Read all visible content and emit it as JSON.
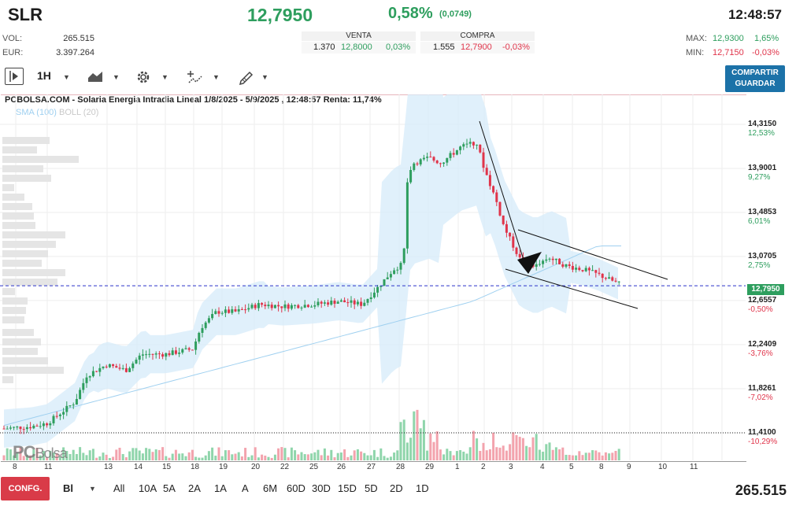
{
  "header": {
    "ticker": "SLR",
    "price": "12,7950",
    "change_pct": "0,58%",
    "change_abs": "(0,0749)",
    "time": "12:48:57",
    "vol_label": "VOL:",
    "vol_value": "265.515",
    "eur_label": "EUR:",
    "eur_value": "3.397.264",
    "max_label": "MAX:",
    "max_value": "12,9300",
    "max_pct": "1,65%",
    "min_label": "MIN:",
    "min_value": "12,7150",
    "min_pct": "-0,03%"
  },
  "order_book": {
    "sell_label": "VENTA",
    "sell_qty": "1.370",
    "sell_price": "12,8000",
    "sell_pct": "0,03%",
    "buy_label": "COMPRA",
    "buy_qty": "1.555",
    "buy_price": "12,7900",
    "buy_pct": "-0,03%"
  },
  "toolbar": {
    "interval": "1H",
    "share_line1": "COMPARTIR",
    "share_line2": "GUARDAR"
  },
  "chart": {
    "title": "PCBOLSA.COM - Solaria Energia Intradia Lineal 1/8/2025 - 5/9/2025 , 12:48:57 Renta: 11,74%",
    "legend_sma": "SMA (100)",
    "legend_boll": "BOLL (20)",
    "watermark_pc": "PC",
    "watermark_bolsa": "Bolsa",
    "current_price_label": "12,7950",
    "y_labels": [
      {
        "price": "14,3150",
        "pct": "12,53%",
        "pct_color": "green"
      },
      {
        "price": "13,9001",
        "pct": "9,27%",
        "pct_color": "green"
      },
      {
        "price": "13,4853",
        "pct": "6,01%",
        "pct_color": "green"
      },
      {
        "price": "13,0705",
        "pct": "2,75%",
        "pct_color": "green"
      },
      {
        "price": "12,6557",
        "pct": "-0,50%",
        "pct_color": "red"
      },
      {
        "price": "12,2409",
        "pct": "-3,76%",
        "pct_color": "red"
      },
      {
        "price": "11,8261",
        "pct": "-7,02%",
        "pct_color": "red"
      },
      {
        "price": "11,4100",
        "pct": "-10,29%",
        "pct_color": "red"
      }
    ],
    "x_labels": [
      "8",
      "11",
      "13",
      "14",
      "15",
      "18",
      "19",
      "20",
      "22",
      "25",
      "26",
      "27",
      "28",
      "29",
      "1",
      "2",
      "3",
      "4",
      "5",
      "8",
      "9",
      "10",
      "11"
    ]
  },
  "chart_data": {
    "type": "candlestick",
    "title": "PCBOLSA.COM - Solaria Energia Intradia Lineal 1/8/2025 - 5/9/2025 , 12:48:57 Renta: 11,74%",
    "ylim": [
      11.41,
      14.315
    ],
    "x": [
      "8",
      "11",
      "13",
      "14",
      "15",
      "18",
      "19",
      "20",
      "22",
      "25",
      "26",
      "27",
      "28",
      "29",
      "1",
      "2",
      "3",
      "4",
      "5"
    ],
    "close": [
      11.45,
      11.85,
      12.05,
      12.1,
      12.15,
      12.5,
      12.62,
      12.68,
      12.65,
      12.66,
      12.8,
      13.95,
      14.0,
      14.15,
      13.5,
      12.95,
      13.05,
      12.95,
      12.8
    ],
    "series": [
      {
        "name": "SMA (100)"
      },
      {
        "name": "BOLL (20)"
      }
    ],
    "current_price": 12.795
  },
  "footer": {
    "config_label": "CONFG.",
    "chart_type": "Bl",
    "periods": [
      "All",
      "10A",
      "5A",
      "2A",
      "1A",
      "A",
      "6M",
      "60D",
      "30D",
      "15D",
      "5D",
      "2D",
      "1D"
    ],
    "volume_total": "265.515"
  },
  "colors": {
    "up": "#2e9e5e",
    "down": "#e0344a",
    "band": "#d6ebfa",
    "sma": "#9fd0f0",
    "accent": "#1c72a8"
  }
}
